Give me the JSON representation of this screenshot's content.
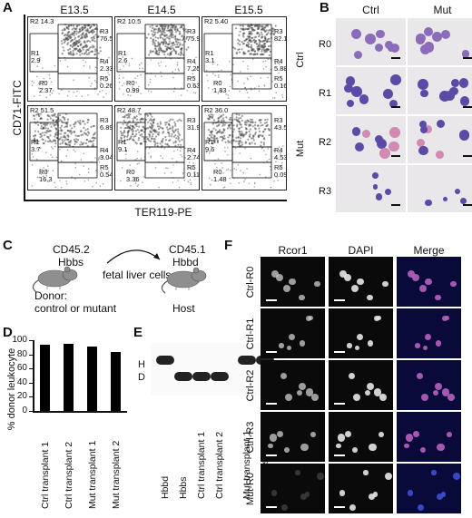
{
  "panel_a": {
    "letter": "A",
    "columns": [
      "E13.5",
      "E14.5",
      "E15.5"
    ],
    "rows": [
      "Ctrl",
      "Mut"
    ],
    "y_axis": "CD71-FITC",
    "x_axis": "TER119-PE",
    "plots": [
      [
        {
          "R2": "R2 14.3",
          "R1": "R1\n2.9",
          "R0": "R0\n2.37",
          "R3": "R3\n76.5",
          "R4": "R4\n2.33",
          "R5": "R5\n0.26"
        },
        {
          "R2": "R2 10.5",
          "R1": "R1\n2.6",
          "R0": "R0\n0.99",
          "R3": "R3\n75.9",
          "R4": "R4\n7.25",
          "R5": "R5\n0.63"
        },
        {
          "R2": "R2 5.40",
          "R1": "R1\n3.1",
          "R0": "R0\n1.83",
          "R3": "R3\n82.1",
          "R4": "R4\n5.88",
          "R5": "R5\n0.16"
        }
      ],
      [
        {
          "R2": "R2 51.5",
          "R1": "R1\n3.7",
          "R0": "R0\n16.3",
          "R3": "R3\n6.89",
          "R4": "R4\n3.04",
          "R5": "R5\n0.54"
        },
        {
          "R2": "R2 48.7",
          "R1": "R1\n9.1",
          "R0": "R0\n3.36",
          "R3": "R3\n31.9",
          "R4": "R4\n2.74",
          "R5": "R5\n0.11"
        },
        {
          "R2": "R2 36.0",
          "R1": "R1\n9.6",
          "R0": "R0\n1.48",
          "R3": "R3\n43.5",
          "R4": "R4\n4.53",
          "R5": "R5\n0.098"
        }
      ]
    ]
  },
  "panel_b": {
    "letter": "B",
    "columns": [
      "Ctrl",
      "Mut"
    ],
    "rows": [
      "R0",
      "R1",
      "R2",
      "R3"
    ]
  },
  "panel_c": {
    "letter": "C",
    "donor_top": "CD45.2",
    "donor_hb": "Hbbs",
    "arrow_label": "fetal liver cells",
    "host_top": "CD45.1",
    "host_hb": "Hbbd",
    "donor_label": "Donor:",
    "donor_sub": "control or mutant",
    "host_label": "Host"
  },
  "panel_d": {
    "letter": "D",
    "ylabel": "% donor leukocyte"
  },
  "chart_data": {
    "type": "bar",
    "categories": [
      "Ctrl transplant 1",
      "Ctrl transplant 2",
      "Mut transplant 1",
      "Mut transplant 2"
    ],
    "values": [
      93,
      95,
      91,
      83
    ],
    "xlabel": "",
    "ylabel": "% donor leukocyte",
    "ylim": [
      0,
      100
    ],
    "yticks": [
      "0",
      "20",
      "40",
      "60",
      "80",
      "100"
    ]
  },
  "panel_e": {
    "letter": "E",
    "band_h": "H",
    "band_d": "D",
    "lanes": [
      "Hbbd",
      "Hbbs",
      "Ctrl transplant 1",
      "Ctrl transplant 2",
      "Mut transplant 1",
      "Mut transplant 2"
    ]
  },
  "panel_f": {
    "letter": "F",
    "columns": [
      "Rcor1",
      "DAPI",
      "Merge"
    ],
    "rows": [
      "Ctrl-R0",
      "Ctrl-R1",
      "Ctrl-R2",
      "Ctrl-R3",
      "Mut-R0"
    ]
  }
}
